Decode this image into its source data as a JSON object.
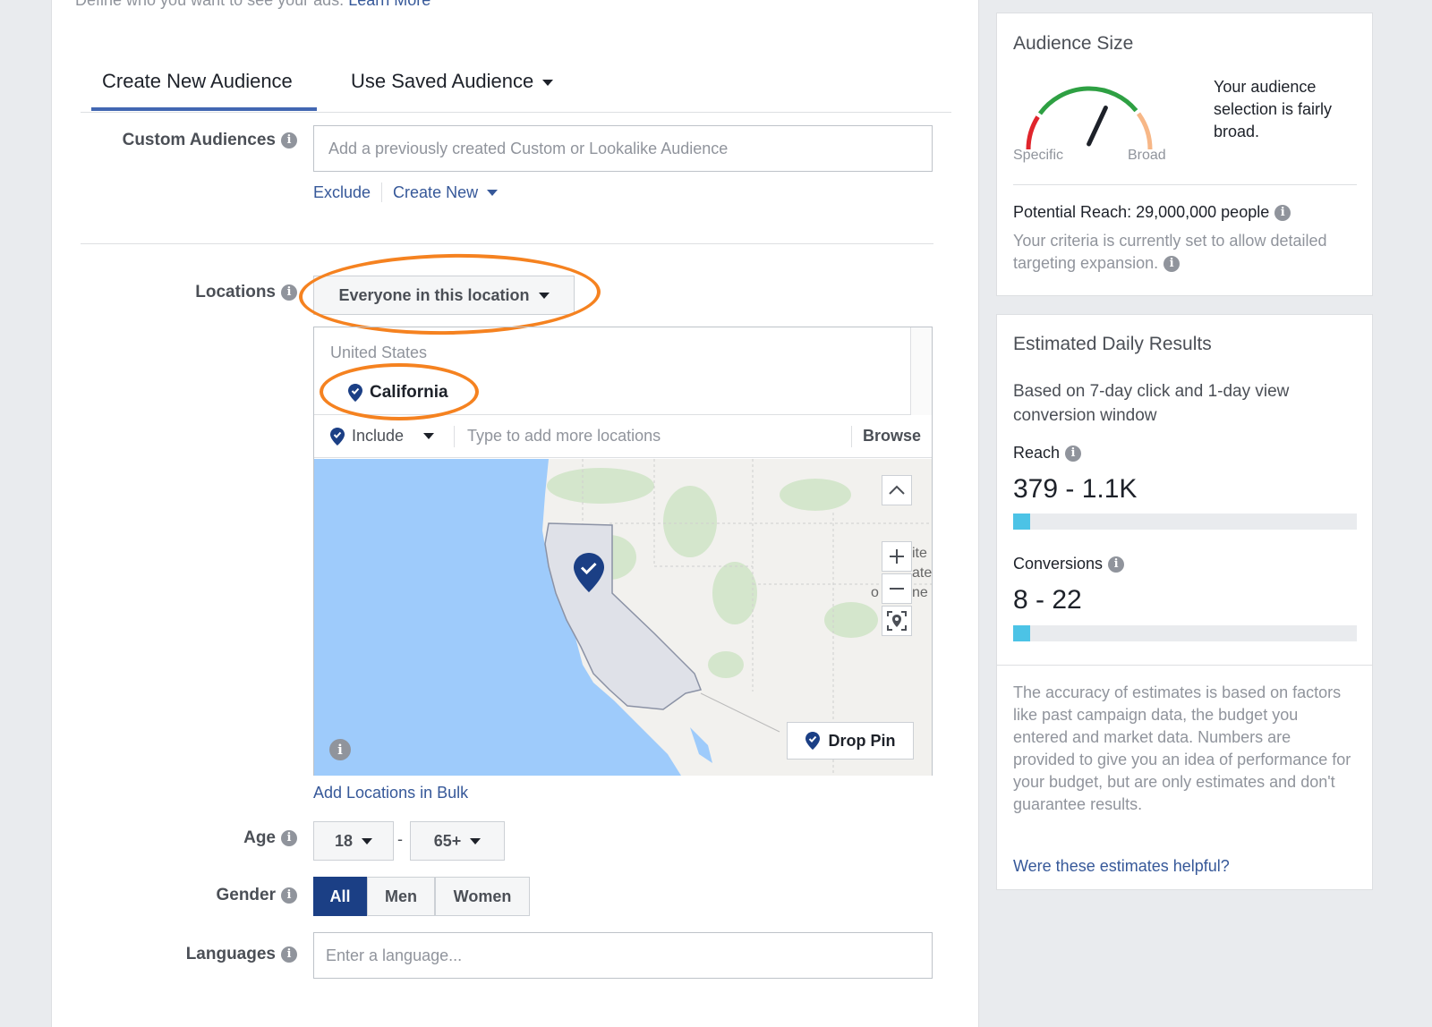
{
  "intro": {
    "text": "Define who you want to see your ads.",
    "link": "Learn More"
  },
  "tabs": {
    "create": "Create New Audience",
    "saved": "Use Saved Audience"
  },
  "custom_audiences": {
    "label": "Custom Audiences",
    "placeholder": "Add a previously created Custom or Lookalike Audience",
    "exclude": "Exclude",
    "create_new": "Create New"
  },
  "locations": {
    "label": "Locations",
    "dropdown": "Everyone in this location",
    "country": "United States",
    "selected": "California",
    "include": "Include",
    "placeholder": "Type to add more locations",
    "browse": "Browse",
    "drop_pin": "Drop Pin",
    "bulk_link": "Add Locations in Bulk"
  },
  "age": {
    "label": "Age",
    "min": "18",
    "max": "65+",
    "separator": "-"
  },
  "gender": {
    "label": "Gender",
    "options": [
      "All",
      "Men",
      "Women"
    ],
    "selected": "All"
  },
  "languages": {
    "label": "Languages",
    "placeholder": "Enter a language..."
  },
  "audience_size": {
    "title": "Audience Size",
    "gauge_left": "Specific",
    "gauge_right": "Broad",
    "gauge_level": 0.62,
    "description": "Your audience selection is fairly broad.",
    "potential_reach": "Potential Reach: 29,000,000 people",
    "expansion_note": "Your criteria is currently set to allow detailed targeting expansion."
  },
  "daily_results": {
    "title": "Estimated Daily Results",
    "basis": "Based on 7-day click and 1-day view conversion window",
    "reach_label": "Reach",
    "reach_value": "379 - 1.1K",
    "reach_fill": 0.05,
    "conversions_label": "Conversions",
    "conversions_value": "8 - 22",
    "conversions_fill": 0.05,
    "accuracy_note": "The accuracy of estimates is based on factors like past campaign data, the budget you entered and market data. Numbers are provided to give you an idea of performance for your budget, but are only estimates and don't guarantee results.",
    "feedback_link": "Were these estimates helpful?"
  },
  "colors": {
    "accent": "#4267b2",
    "link": "#365899",
    "highlight": "#f58220",
    "bar": "#4cc3e6",
    "selected_gender": "#1b3f85"
  }
}
